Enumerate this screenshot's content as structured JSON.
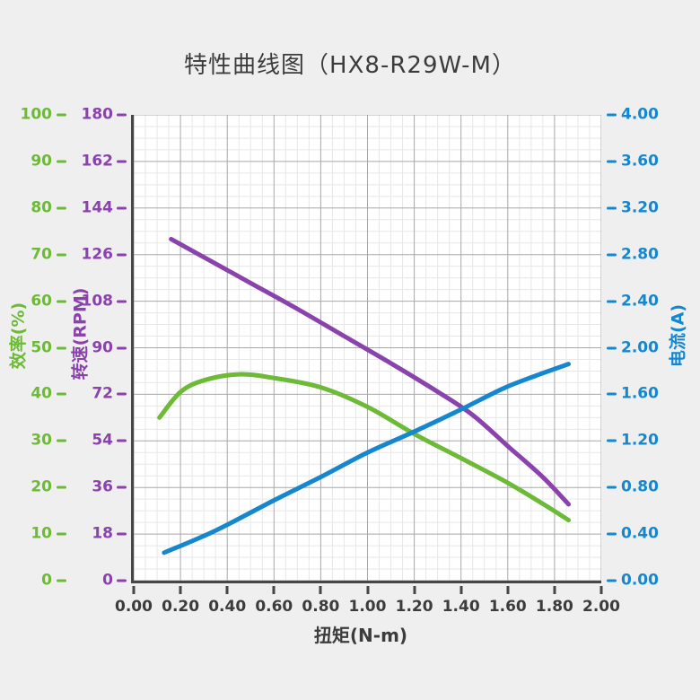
{
  "title": "特性曲线图（HX8-R29W-M）",
  "colors": {
    "page_background": "#efefef",
    "plot_background": "#ffffff",
    "grid_major": "#a8a8a8",
    "grid_minor": "#e7e7e7",
    "axis_line": "#464646",
    "title_text": "#3c3c3c",
    "efficiency_green": "#6cba36",
    "rpm_purple": "#8a42ad",
    "current_blue": "#1587cf"
  },
  "chart_data": {
    "type": "line",
    "title": "特性曲线图（HX8-R29W-M）",
    "xlabel": "扭矩(N-m)",
    "xlim": [
      0,
      2
    ],
    "x_tick_labels": [
      "0.00",
      "0.20",
      "0.40",
      "0.60",
      "0.80",
      "1.00",
      "1.20",
      "1.40",
      "1.60",
      "1.80",
      "2.00"
    ],
    "grid": {
      "major": true,
      "minor": true,
      "minor_per_major": 4
    },
    "legend": "none",
    "axes": [
      {
        "id": "efficiency",
        "label": "效率(%)",
        "color": "#6cba36",
        "min": 0,
        "max": 100,
        "tick_labels": [
          "100",
          "90",
          "80",
          "70",
          "60",
          "50",
          "40",
          "30",
          "20",
          "10",
          "0"
        ]
      },
      {
        "id": "rpm",
        "label": "转速(RPM)",
        "color": "#8a42ad",
        "min": 0,
        "max": 180,
        "tick_labels": [
          "180",
          "162",
          "144",
          "126",
          "108",
          "90",
          "72",
          "54",
          "36",
          "18",
          "0"
        ]
      },
      {
        "id": "current",
        "label": "电流(A)",
        "color": "#1587cf",
        "min": 0,
        "max": 4,
        "tick_labels": [
          "4.00",
          "3.60",
          "3.20",
          "2.80",
          "2.40",
          "2.00",
          "1.60",
          "1.20",
          "0.80",
          "0.40",
          "0.00"
        ]
      }
    ],
    "series": [
      {
        "name": "转速",
        "axis": "rpm",
        "color": "#8a42ad",
        "x": [
          0.16,
          0.3,
          0.5,
          0.7,
          0.9,
          1.1,
          1.3,
          1.45,
          1.6,
          1.75,
          1.86
        ],
        "y": [
          132,
          125,
          115,
          105,
          94.5,
          84,
          73,
          64,
          52,
          40,
          29.5
        ]
      },
      {
        "name": "效率",
        "axis": "efficiency",
        "color": "#6cba36",
        "x": [
          0.11,
          0.2,
          0.3,
          0.45,
          0.6,
          0.8,
          1.0,
          1.2,
          1.4,
          1.6,
          1.75,
          1.86
        ],
        "y": [
          35,
          40.5,
          43,
          44.3,
          43.5,
          41.5,
          37.3,
          31.5,
          26.3,
          21,
          16.5,
          13
        ]
      },
      {
        "name": "电流",
        "axis": "current",
        "color": "#1587cf",
        "x": [
          0.13,
          0.35,
          0.6,
          0.8,
          1.0,
          1.2,
          1.4,
          1.58,
          1.72,
          1.86
        ],
        "y": [
          0.24,
          0.43,
          0.69,
          0.89,
          1.1,
          1.28,
          1.47,
          1.65,
          1.76,
          1.86
        ]
      }
    ]
  }
}
